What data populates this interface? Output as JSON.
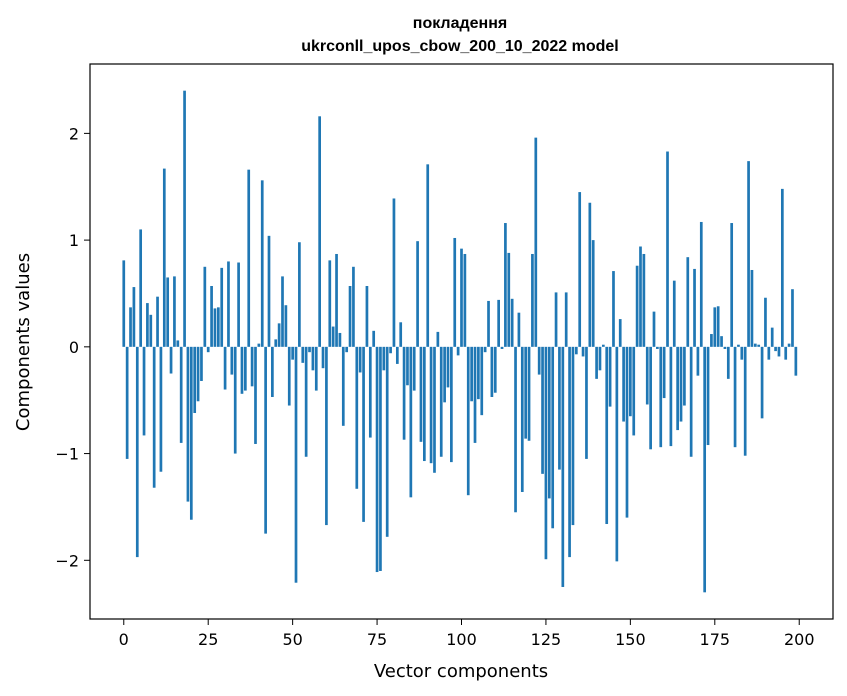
{
  "chart_data": {
    "type": "bar",
    "title": "покладення",
    "subtitle": "ukrconll_upos_cbow_200_10_2022 model",
    "xlabel": "Vector components",
    "ylabel": "Components values",
    "xlim": [
      -10,
      210
    ],
    "ylim": [
      -2.55,
      2.65
    ],
    "xticks": [
      0,
      25,
      50,
      75,
      100,
      125,
      150,
      175,
      200
    ],
    "yticks": [
      -2,
      -1,
      0,
      1,
      2
    ],
    "xtick_labels": [
      "0",
      "25",
      "50",
      "75",
      "100",
      "125",
      "150",
      "175",
      "200"
    ],
    "ytick_labels": [
      "−2",
      "−1",
      "0",
      "1",
      "2"
    ],
    "grid": false,
    "bar_color": "#1f77b4",
    "x": [
      0,
      1,
      2,
      3,
      4,
      5,
      6,
      7,
      8,
      9,
      10,
      11,
      12,
      13,
      14,
      15,
      16,
      17,
      18,
      19,
      20,
      21,
      22,
      23,
      24,
      25,
      26,
      27,
      28,
      29,
      30,
      31,
      32,
      33,
      34,
      35,
      36,
      37,
      38,
      39,
      40,
      41,
      42,
      43,
      44,
      45,
      46,
      47,
      48,
      49,
      50,
      51,
      52,
      53,
      54,
      55,
      56,
      57,
      58,
      59,
      60,
      61,
      62,
      63,
      64,
      65,
      66,
      67,
      68,
      69,
      70,
      71,
      72,
      73,
      74,
      75,
      76,
      77,
      78,
      79,
      80,
      81,
      82,
      83,
      84,
      85,
      86,
      87,
      88,
      89,
      90,
      91,
      92,
      93,
      94,
      95,
      96,
      97,
      98,
      99,
      100,
      101,
      102,
      103,
      104,
      105,
      106,
      107,
      108,
      109,
      110,
      111,
      112,
      113,
      114,
      115,
      116,
      117,
      118,
      119,
      120,
      121,
      122,
      123,
      124,
      125,
      126,
      127,
      128,
      129,
      130,
      131,
      132,
      133,
      134,
      135,
      136,
      137,
      138,
      139,
      140,
      141,
      142,
      143,
      144,
      145,
      146,
      147,
      148,
      149,
      150,
      151,
      152,
      153,
      154,
      155,
      156,
      157,
      158,
      159,
      160,
      161,
      162,
      163,
      164,
      165,
      166,
      167,
      168,
      169,
      170,
      171,
      172,
      173,
      174,
      175,
      176,
      177,
      178,
      179,
      180,
      181,
      182,
      183,
      184,
      185,
      186,
      187,
      188,
      189,
      190,
      191,
      192,
      193,
      194,
      195,
      196,
      197,
      198,
      199
    ],
    "values": [
      0.81,
      -1.05,
      0.37,
      0.56,
      -1.97,
      1.1,
      -0.83,
      0.41,
      0.3,
      -1.32,
      0.47,
      -1.17,
      1.67,
      0.65,
      -0.25,
      0.66,
      0.06,
      -0.9,
      2.4,
      -1.45,
      -1.62,
      -0.62,
      -0.51,
      -0.32,
      0.75,
      -0.05,
      0.57,
      0.36,
      0.37,
      0.74,
      -0.4,
      0.8,
      -0.26,
      -1.0,
      0.79,
      -0.44,
      -0.41,
      1.66,
      -0.37,
      -0.91,
      0.03,
      1.56,
      -1.75,
      1.04,
      -0.47,
      0.07,
      0.22,
      0.66,
      0.39,
      -0.55,
      -0.12,
      -2.21,
      0.98,
      -0.15,
      -1.03,
      -0.05,
      -0.22,
      -0.41,
      2.16,
      -0.2,
      -1.67,
      0.81,
      0.19,
      0.87,
      0.13,
      -0.74,
      -0.05,
      0.57,
      0.75,
      -1.33,
      -0.24,
      -1.64,
      0.57,
      -0.85,
      0.15,
      -2.11,
      -2.1,
      -0.22,
      -1.78,
      -0.06,
      1.39,
      -0.16,
      0.23,
      -0.87,
      -0.36,
      -1.41,
      -0.41,
      0.99,
      -0.89,
      -1.07,
      1.71,
      -1.09,
      -1.18,
      0.14,
      -1.03,
      -0.52,
      -0.38,
      -1.08,
      1.02,
      -0.08,
      0.92,
      0.87,
      -1.39,
      -0.51,
      -0.9,
      -0.49,
      -0.64,
      -0.05,
      0.43,
      -0.47,
      -0.43,
      0.44,
      -0.02,
      1.16,
      0.88,
      0.45,
      -1.55,
      0.32,
      -1.36,
      -0.86,
      -0.88,
      0.87,
      1.96,
      -0.26,
      -1.19,
      -1.99,
      -1.42,
      -1.7,
      0.51,
      -1.15,
      -2.25,
      0.51,
      -1.97,
      -1.67,
      -0.07,
      1.45,
      -0.09,
      -1.05,
      1.35,
      1.0,
      -0.3,
      -0.22,
      0.02,
      -1.66,
      -0.56,
      0.71,
      -2.01,
      0.26,
      -0.7,
      -1.6,
      -0.65,
      -0.83,
      0.76,
      0.94,
      0.87,
      -0.54,
      -0.96,
      0.33,
      -0.02,
      -0.94,
      -0.48,
      1.83,
      -0.93,
      0.62,
      -0.78,
      -0.7,
      -0.55,
      0.84,
      -1.03,
      0.73,
      -0.27,
      1.17,
      -2.3,
      -0.92,
      0.12,
      0.37,
      0.38,
      0.1,
      -0.02,
      -0.3,
      1.16,
      -0.94,
      0.02,
      -0.12,
      -1.02,
      1.74,
      0.72,
      0.03,
      0.02,
      -0.67,
      0.46,
      -0.12,
      0.18,
      -0.04,
      -0.09,
      1.48,
      -0.12,
      0.03,
      0.54,
      -0.27
    ]
  }
}
